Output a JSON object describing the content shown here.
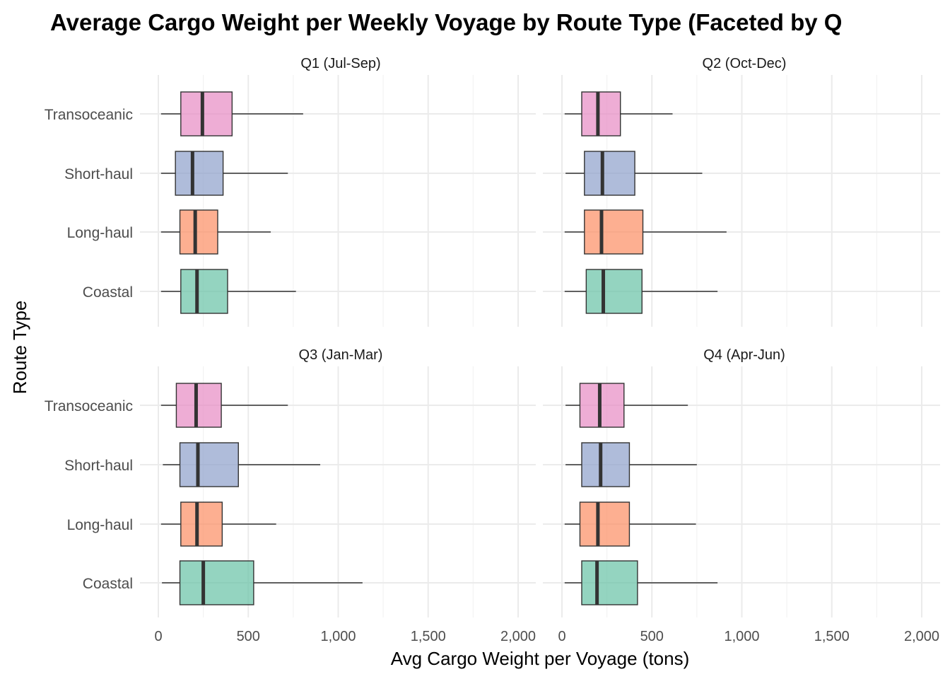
{
  "chart_data": {
    "type": "boxplot",
    "orientation": "horizontal",
    "title": "Average Cargo Weight per Weekly Voyage by Route Type (Faceted by Q",
    "xlabel": "Avg Cargo Weight per Voyage (tons)",
    "ylabel": "Route Type",
    "xlim": [
      0,
      2000
    ],
    "x_ticks": [
      0,
      500,
      1000,
      1500,
      2000
    ],
    "x_tick_labels": [
      "0",
      "500",
      "1,000",
      "1,500",
      "2,000"
    ],
    "categories": [
      "Transoceanic",
      "Short-haul",
      "Long-haul",
      "Coastal"
    ],
    "colors": {
      "Transoceanic": "#e78ac3",
      "Short-haul": "#8da0cb",
      "Long-haul": "#fc8d62",
      "Coastal": "#66c2a5"
    },
    "grid": true,
    "legend": "none",
    "facets": [
      {
        "label": "Q1 (Jul-Sep)",
        "boxes": [
          {
            "category": "Transoceanic",
            "min": 15,
            "q1": 125,
            "median": 245,
            "q3": 410,
            "max": 805
          },
          {
            "category": "Short-haul",
            "min": 15,
            "q1": 95,
            "median": 190,
            "q3": 360,
            "max": 720
          },
          {
            "category": "Long-haul",
            "min": 15,
            "q1": 120,
            "median": 205,
            "q3": 330,
            "max": 625
          },
          {
            "category": "Coastal",
            "min": 15,
            "q1": 125,
            "median": 215,
            "q3": 385,
            "max": 765
          }
        ]
      },
      {
        "label": "Q2 (Oct-Dec)",
        "boxes": [
          {
            "category": "Transoceanic",
            "min": 15,
            "q1": 110,
            "median": 200,
            "q3": 325,
            "max": 615
          },
          {
            "category": "Short-haul",
            "min": 20,
            "q1": 125,
            "median": 225,
            "q3": 405,
            "max": 780
          },
          {
            "category": "Long-haul",
            "min": 15,
            "q1": 125,
            "median": 220,
            "q3": 450,
            "max": 915
          },
          {
            "category": "Coastal",
            "min": 15,
            "q1": 135,
            "median": 230,
            "q3": 445,
            "max": 865
          }
        ]
      },
      {
        "label": "Q3 (Jan-Mar)",
        "boxes": [
          {
            "category": "Transoceanic",
            "min": 15,
            "q1": 100,
            "median": 210,
            "q3": 350,
            "max": 720
          },
          {
            "category": "Short-haul",
            "min": 25,
            "q1": 120,
            "median": 220,
            "q3": 445,
            "max": 900
          },
          {
            "category": "Long-haul",
            "min": 15,
            "q1": 125,
            "median": 215,
            "q3": 355,
            "max": 655
          },
          {
            "category": "Coastal",
            "min": 20,
            "q1": 120,
            "median": 250,
            "q3": 530,
            "max": 1135
          }
        ]
      },
      {
        "label": "Q4 (Apr-Jun)",
        "boxes": [
          {
            "category": "Transoceanic",
            "min": 20,
            "q1": 100,
            "median": 210,
            "q3": 345,
            "max": 700
          },
          {
            "category": "Short-haul",
            "min": 20,
            "q1": 110,
            "median": 215,
            "q3": 375,
            "max": 750
          },
          {
            "category": "Long-haul",
            "min": 15,
            "q1": 100,
            "median": 200,
            "q3": 375,
            "max": 745
          },
          {
            "category": "Coastal",
            "min": 15,
            "q1": 110,
            "median": 195,
            "q3": 420,
            "max": 865
          }
        ]
      }
    ]
  }
}
